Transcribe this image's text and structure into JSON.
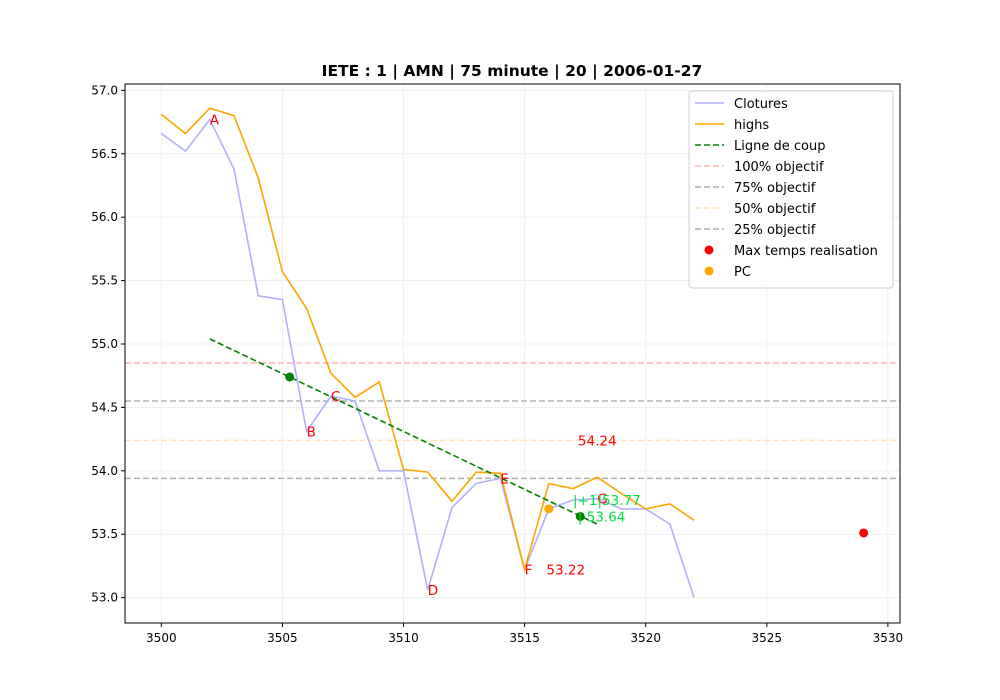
{
  "chart_data": {
    "type": "line",
    "title": "IETE : 1 | AMN | 75 minute | 20 | 2006-01-27",
    "xlabel": "",
    "ylabel": "",
    "xlim": [
      3498.5,
      3530.5
    ],
    "ylim": [
      52.8,
      57.05
    ],
    "x_ticks": [
      3500,
      3505,
      3510,
      3515,
      3520,
      3525,
      3530
    ],
    "y_ticks": [
      53.0,
      53.5,
      54.0,
      54.5,
      55.0,
      55.5,
      56.0,
      56.5,
      57.0
    ],
    "x_tick_labels": [
      "3500",
      "3505",
      "3510",
      "3515",
      "3520",
      "3525",
      "3530"
    ],
    "y_tick_labels": [
      "53.0",
      "53.5",
      "54.0",
      "54.5",
      "55.0",
      "55.5",
      "56.0",
      "56.5",
      "57.0"
    ],
    "grid": true,
    "legend_position": "top-right",
    "series": [
      {
        "name": "Clotures",
        "kind": "line",
        "color": "#b0b0ff",
        "x": [
          3500,
          3501,
          3502,
          3503,
          3504,
          3505,
          3506,
          3507,
          3508,
          3509,
          3510,
          3511,
          3512,
          3513,
          3514,
          3515,
          3516,
          3517,
          3518,
          3519,
          3520,
          3521,
          3522
        ],
        "y": [
          56.66,
          56.52,
          56.77,
          56.38,
          55.38,
          55.35,
          54.31,
          54.59,
          54.55,
          54.0,
          54.0,
          53.06,
          53.71,
          53.9,
          53.94,
          53.22,
          53.7,
          53.77,
          53.78,
          53.7,
          53.7,
          53.58,
          53.0
        ]
      },
      {
        "name": "highs",
        "kind": "line",
        "color": "#ffa500",
        "x": [
          3500,
          3501,
          3502,
          3503,
          3504,
          3505,
          3506,
          3507,
          3508,
          3509,
          3510,
          3511,
          3512,
          3513,
          3514,
          3515,
          3516,
          3517,
          3518,
          3519,
          3520,
          3521,
          3522
        ],
        "y": [
          56.81,
          56.66,
          56.86,
          56.8,
          56.31,
          55.57,
          55.28,
          54.77,
          54.58,
          54.7,
          54.01,
          53.99,
          53.76,
          53.99,
          53.98,
          53.22,
          53.9,
          53.86,
          53.95,
          53.82,
          53.7,
          53.74,
          53.61
        ]
      },
      {
        "name": "Ligne de coup",
        "kind": "dashed-line",
        "color": "#008000",
        "x": [
          3502,
          3518
        ],
        "y": [
          55.04,
          53.58
        ]
      },
      {
        "name": "Ligne de coup points",
        "kind": "points",
        "color": "#008000",
        "x": [
          3505.3,
          3517.3
        ],
        "y": [
          54.74,
          53.64
        ]
      },
      {
        "name": "Max temps realisation",
        "kind": "points",
        "color": "#ff0000",
        "x": [
          3529
        ],
        "y": [
          53.51
        ]
      },
      {
        "name": "PC",
        "kind": "points",
        "color": "#ffa500",
        "x": [
          3516
        ],
        "y": [
          53.7
        ]
      }
    ],
    "hlines": [
      {
        "name": "100% objectif",
        "y": 54.85,
        "color": "#ffb0b0"
      },
      {
        "name": "75% objectif",
        "y": 54.55,
        "color": "#b0b0b0"
      },
      {
        "name": "50% objectif",
        "y": 54.24,
        "color": "#ffe4b0"
      },
      {
        "name": "25% objectif",
        "y": 53.94,
        "color": "#b0b0b0"
      }
    ],
    "legend": [
      {
        "label": "Clotures",
        "style": "line",
        "color": "#b0b0ff"
      },
      {
        "label": "highs",
        "style": "line",
        "color": "#ffa500"
      },
      {
        "label": "Ligne de coup",
        "style": "dashed",
        "color": "#008000"
      },
      {
        "label": "100% objectif",
        "style": "dashed",
        "color": "#ffb0b0"
      },
      {
        "label": "75% objectif",
        "style": "dashed",
        "color": "#b0b0b0"
      },
      {
        "label": "50% objectif",
        "style": "dashed",
        "color": "#ffe4b0"
      },
      {
        "label": "25% objectif",
        "style": "dashed",
        "color": "#b0b0b0"
      },
      {
        "label": "Max temps realisation",
        "style": "dot",
        "color": "#ff0000"
      },
      {
        "label": "PC",
        "style": "dot",
        "color": "#ffa500"
      }
    ],
    "annotations": [
      {
        "text": "A",
        "x": 3502.0,
        "y": 56.77,
        "color": "red"
      },
      {
        "text": "B",
        "x": 3506.0,
        "y": 54.31,
        "color": "red"
      },
      {
        "text": "C",
        "x": 3507.0,
        "y": 54.59,
        "color": "red"
      },
      {
        "text": "D",
        "x": 3511.0,
        "y": 53.06,
        "color": "red"
      },
      {
        "text": "E",
        "x": 3514.0,
        "y": 53.94,
        "color": "red"
      },
      {
        "text": "F",
        "x": 3515.0,
        "y": 53.22,
        "color": "red"
      },
      {
        "text": "G",
        "x": 3518.0,
        "y": 53.78,
        "color": "red"
      },
      {
        "text": "54.24",
        "x": 3517.2,
        "y": 54.24,
        "color": "red"
      },
      {
        "text": "53.22",
        "x": 3515.9,
        "y": 53.22,
        "color": "red"
      },
      {
        "text": "|+1|53.77",
        "x": 3517.0,
        "y": 53.77,
        "color": "green"
      },
      {
        "text": "| 53.64",
        "x": 3517.2,
        "y": 53.64,
        "color": "green"
      }
    ]
  }
}
